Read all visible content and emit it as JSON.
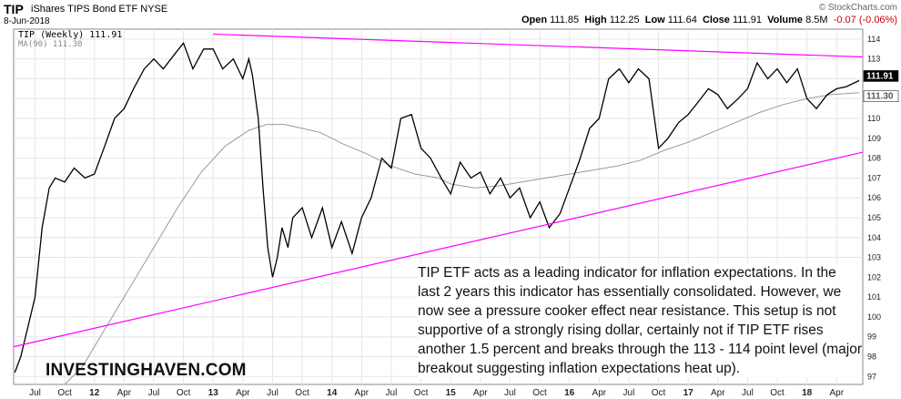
{
  "header": {
    "ticker": "TIP",
    "name": "iShares TIPS Bond ETF",
    "exchange": "NYSE",
    "date": "8-Jun-2018",
    "credit": "© StockCharts.com",
    "open_label": "Open",
    "open": "111.85",
    "high_label": "High",
    "high": "112.25",
    "low_label": "Low",
    "low": "111.64",
    "close_label": "Close",
    "close": "111.91",
    "volume_label": "Volume",
    "volume": "8.5M",
    "change": "-0.07 (-0.06%)"
  },
  "legend": {
    "series1": "TIP (Weekly) 111.91",
    "series2": "MA(90) 111.30"
  },
  "annotation": "TIP ETF acts as a leading indicator for inflation expectations. In the last 2 years this indicator has essentially consolidated. However, we now see a pressure cooker effect near resistance. This setup is not supportive of a strongly rising dollar, certainly not if TIP ETF rises another 1.5 percent and breaks through the 113 - 114 point level (major breakout suggesting inflation expectations heat up).",
  "brand": "INVESTINGHAVEN.COM",
  "colors": {
    "trendline": "#ff00ff",
    "price": "#000000",
    "ma": "#999999",
    "grid": "#e6e6e6"
  },
  "chart_data": {
    "type": "line",
    "title": "TIP iShares TIPS Bond ETF",
    "x_axis": {
      "tick_labels": [
        "Jul",
        "Oct",
        "12",
        "Apr",
        "Jul",
        "Oct",
        "13",
        "Apr",
        "Jul",
        "Oct",
        "14",
        "Apr",
        "Jul",
        "Oct",
        "15",
        "Apr",
        "Jul",
        "Oct",
        "16",
        "Apr",
        "Jul",
        "Oct",
        "17",
        "Apr",
        "Jul",
        "Oct",
        "18",
        "Apr"
      ],
      "tick_positions": [
        2011.5,
        2011.75,
        2012.0,
        2012.25,
        2012.5,
        2012.75,
        2013.0,
        2013.25,
        2013.5,
        2013.75,
        2014.0,
        2014.25,
        2014.5,
        2014.75,
        2015.0,
        2015.25,
        2015.5,
        2015.75,
        2016.0,
        2016.25,
        2016.5,
        2016.75,
        2017.0,
        2017.25,
        2017.5,
        2017.75,
        2018.0,
        2018.25
      ],
      "range": [
        2011.32,
        2018.47
      ]
    },
    "y_axis": {
      "ticks": [
        97,
        98,
        99,
        100,
        101,
        102,
        103,
        104,
        105,
        106,
        107,
        108,
        109,
        110,
        111,
        112,
        113,
        114
      ],
      "range": [
        96.6,
        114.5
      ],
      "side": "right"
    },
    "grid": true,
    "legend_position": "top-left",
    "last_value_labels": [
      "111.91",
      "111.30"
    ],
    "series": [
      {
        "name": "TIP (Weekly)",
        "x": [
          2011.33,
          2011.38,
          2011.44,
          2011.5,
          2011.56,
          2011.62,
          2011.67,
          2011.75,
          2011.83,
          2011.92,
          2012.0,
          2012.08,
          2012.17,
          2012.25,
          2012.33,
          2012.42,
          2012.5,
          2012.58,
          2012.67,
          2012.75,
          2012.83,
          2012.92,
          2013.0,
          2013.08,
          2013.17,
          2013.25,
          2013.3,
          2013.33,
          2013.38,
          2013.42,
          2013.46,
          2013.5,
          2013.54,
          2013.58,
          2013.63,
          2013.67,
          2013.75,
          2013.83,
          2013.92,
          2014.0,
          2014.08,
          2014.17,
          2014.25,
          2014.33,
          2014.42,
          2014.5,
          2014.58,
          2014.67,
          2014.75,
          2014.83,
          2014.92,
          2015.0,
          2015.08,
          2015.17,
          2015.25,
          2015.33,
          2015.42,
          2015.5,
          2015.58,
          2015.67,
          2015.75,
          2015.83,
          2015.92,
          2016.0,
          2016.08,
          2016.17,
          2016.25,
          2016.33,
          2016.42,
          2016.5,
          2016.58,
          2016.67,
          2016.75,
          2016.83,
          2016.92,
          2017.0,
          2017.08,
          2017.17,
          2017.25,
          2017.33,
          2017.42,
          2017.5,
          2017.58,
          2017.67,
          2017.75,
          2017.83,
          2017.92,
          2018.0,
          2018.08,
          2018.17,
          2018.25,
          2018.33,
          2018.44
        ],
        "values": [
          97.2,
          98.0,
          99.5,
          101.0,
          104.5,
          106.5,
          107.0,
          106.8,
          107.5,
          107.0,
          107.2,
          108.5,
          110.0,
          110.5,
          111.5,
          112.5,
          113.0,
          112.5,
          113.2,
          113.8,
          112.5,
          113.5,
          113.5,
          112.5,
          113.0,
          112.0,
          113.0,
          112.2,
          110.0,
          106.5,
          103.5,
          102.0,
          103.0,
          104.5,
          103.5,
          105.0,
          105.5,
          104.0,
          105.5,
          103.5,
          104.8,
          103.2,
          105.0,
          106.0,
          108.0,
          107.5,
          110.0,
          110.2,
          108.5,
          108.0,
          107.0,
          106.2,
          107.8,
          107.0,
          107.3,
          106.2,
          107.0,
          106.0,
          106.5,
          105.0,
          105.8,
          104.5,
          105.2,
          106.5,
          107.8,
          109.5,
          110.0,
          112.0,
          112.5,
          111.8,
          112.5,
          112.0,
          108.5,
          109.0,
          109.8,
          110.2,
          110.8,
          111.5,
          111.2,
          110.5,
          111.0,
          111.5,
          112.8,
          112.0,
          112.5,
          111.8,
          112.5,
          111.0,
          110.5,
          111.2,
          111.5,
          111.6,
          111.91
        ]
      },
      {
        "name": "MA(90)",
        "x": [
          2011.75,
          2011.9,
          2012.0,
          2012.15,
          2012.3,
          2012.5,
          2012.7,
          2012.9,
          2013.1,
          2013.3,
          2013.45,
          2013.6,
          2013.75,
          2013.9,
          2014.0,
          2014.1,
          2014.3,
          2014.5,
          2014.7,
          2014.9,
          2015.0,
          2015.2,
          2015.4,
          2015.6,
          2015.8,
          2016.0,
          2016.2,
          2016.4,
          2016.6,
          2016.8,
          2017.0,
          2017.2,
          2017.4,
          2017.6,
          2017.8,
          2018.0,
          2018.2,
          2018.44
        ],
        "values": [
          96.6,
          97.5,
          98.5,
          100.0,
          101.5,
          103.5,
          105.5,
          107.3,
          108.6,
          109.4,
          109.7,
          109.7,
          109.5,
          109.3,
          109.0,
          108.7,
          108.2,
          107.6,
          107.2,
          107.0,
          106.7,
          106.5,
          106.6,
          106.8,
          107.0,
          107.2,
          107.4,
          107.6,
          107.9,
          108.4,
          108.8,
          109.3,
          109.8,
          110.3,
          110.7,
          111.0,
          111.2,
          111.3
        ]
      }
    ],
    "trendlines": [
      {
        "name": "resistance",
        "x": [
          2013.0,
          2018.47
        ],
        "values": [
          114.25,
          113.1
        ]
      },
      {
        "name": "support",
        "x": [
          2011.32,
          2018.47
        ],
        "values": [
          98.5,
          108.3
        ]
      }
    ]
  }
}
